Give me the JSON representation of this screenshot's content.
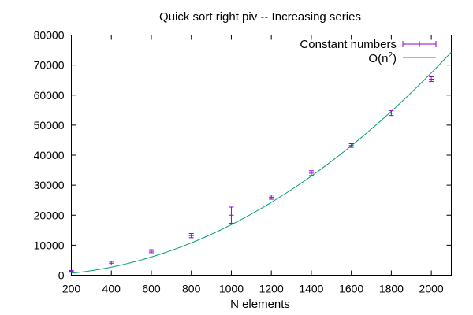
{
  "chart_data": {
    "type": "scatter",
    "title": "Quick sort right piv -- Increasing series",
    "xlabel": "N elements",
    "ylabel": "",
    "xlim": [
      200,
      2100
    ],
    "ylim": [
      0,
      80000
    ],
    "x_ticks": [
      200,
      400,
      600,
      800,
      1000,
      1200,
      1400,
      1600,
      1800,
      2000
    ],
    "y_ticks": [
      0,
      10000,
      20000,
      30000,
      40000,
      50000,
      60000,
      70000,
      80000
    ],
    "legend_position": "top-right",
    "series": [
      {
        "name": "Constant numbers",
        "kind": "errorbars",
        "color": "#9400d3",
        "x": [
          200,
          400,
          600,
          800,
          1000,
          1200,
          1400,
          1600,
          1800,
          2000
        ],
        "y": [
          1300,
          4000,
          8000,
          13200,
          20000,
          26000,
          34000,
          43200,
          54000,
          65300
        ],
        "err": [
          300,
          600,
          500,
          700,
          2700,
          700,
          800,
          600,
          800,
          800
        ]
      },
      {
        "name_text": "O(n",
        "name_sup": "2",
        "name_close": ")",
        "kind": "line",
        "color": "#009e73",
        "function": "coef*x^2",
        "coef": 0.01685
      }
    ]
  }
}
